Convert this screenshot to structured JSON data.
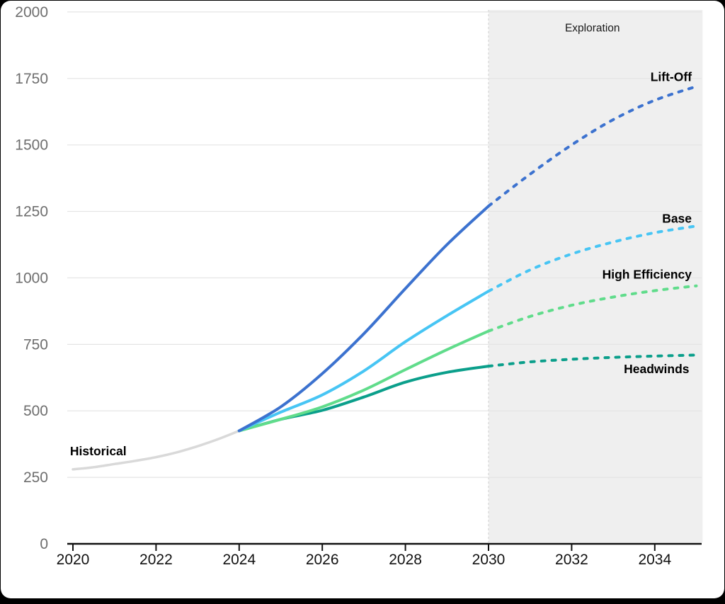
{
  "frame": {
    "background": "#000000",
    "card_background": "#ffffff"
  },
  "chart_data": {
    "type": "line",
    "title": "",
    "xlabel": "",
    "ylabel": "",
    "xlim": [
      2020,
      2035.15
    ],
    "ylim": [
      0,
      2000
    ],
    "x_ticks": [
      2020,
      2022,
      2024,
      2026,
      2028,
      2030,
      2032,
      2034
    ],
    "y_ticks": [
      0,
      250,
      500,
      750,
      1000,
      1250,
      1500,
      1750,
      2000
    ],
    "grid": "horizontal",
    "legend_position": "inline-labels",
    "exploration_region": {
      "label": "Exploration",
      "x_start": 2030,
      "x_end": 2035.15,
      "fill": "#efefef"
    },
    "series": [
      {
        "name": "Historical",
        "color": "#d9d9d9",
        "width": 3.5,
        "solid": [
          [
            2020,
            280
          ],
          [
            2020.5,
            288
          ],
          [
            2021,
            300
          ],
          [
            2021.5,
            312
          ],
          [
            2022,
            326
          ],
          [
            2022.5,
            344
          ],
          [
            2023,
            367
          ],
          [
            2023.5,
            394
          ],
          [
            2024,
            425
          ]
        ],
        "dashed": []
      },
      {
        "name": "Headwinds",
        "color": "#0b9f8b",
        "width": 4,
        "solid": [
          [
            2024,
            425
          ],
          [
            2025,
            468
          ],
          [
            2026,
            502
          ],
          [
            2027,
            552
          ],
          [
            2028,
            608
          ],
          [
            2029,
            645
          ],
          [
            2030,
            668
          ]
        ],
        "dashed": [
          [
            2030,
            668
          ],
          [
            2031,
            684
          ],
          [
            2032,
            694
          ],
          [
            2033,
            701
          ],
          [
            2034,
            706
          ],
          [
            2035,
            710
          ]
        ]
      },
      {
        "name": "High Efficiency",
        "color": "#60dc8b",
        "width": 4,
        "solid": [
          [
            2024,
            425
          ],
          [
            2025,
            468
          ],
          [
            2026,
            515
          ],
          [
            2027,
            578
          ],
          [
            2028,
            655
          ],
          [
            2029,
            730
          ],
          [
            2030,
            800
          ]
        ],
        "dashed": [
          [
            2030,
            800
          ],
          [
            2031,
            855
          ],
          [
            2032,
            897
          ],
          [
            2033,
            928
          ],
          [
            2034,
            952
          ],
          [
            2035,
            970
          ]
        ]
      },
      {
        "name": "Base",
        "color": "#47c5f4",
        "width": 4,
        "solid": [
          [
            2024,
            425
          ],
          [
            2025,
            495
          ],
          [
            2026,
            560
          ],
          [
            2027,
            650
          ],
          [
            2028,
            760
          ],
          [
            2029,
            858
          ],
          [
            2030,
            950
          ]
        ],
        "dashed": [
          [
            2030,
            950
          ],
          [
            2031,
            1030
          ],
          [
            2032,
            1090
          ],
          [
            2033,
            1135
          ],
          [
            2034,
            1170
          ],
          [
            2035,
            1195
          ]
        ]
      },
      {
        "name": "Lift-Off",
        "color": "#3c72cf",
        "width": 4,
        "solid": [
          [
            2024,
            425
          ],
          [
            2025,
            515
          ],
          [
            2026,
            640
          ],
          [
            2027,
            790
          ],
          [
            2028,
            960
          ],
          [
            2029,
            1125
          ],
          [
            2030,
            1270
          ]
        ],
        "dashed": [
          [
            2030,
            1270
          ],
          [
            2031,
            1390
          ],
          [
            2032,
            1500
          ],
          [
            2033,
            1595
          ],
          [
            2034,
            1668
          ],
          [
            2035,
            1720
          ]
        ]
      }
    ],
    "annotations": [
      {
        "id": "historical-label",
        "text": "Historical",
        "year": 2019.93,
        "value": 350,
        "anchor": "start",
        "bold": true,
        "size": 17.5,
        "color": "#000000"
      },
      {
        "id": "liftoff-label",
        "text": "Lift-Off",
        "year": 2034.89,
        "value": 1757,
        "anchor": "end",
        "bold": true,
        "size": 17.5,
        "color": "#000000"
      },
      {
        "id": "base-label",
        "text": "Base",
        "year": 2034.89,
        "value": 1224,
        "anchor": "end",
        "bold": true,
        "size": 17.5,
        "color": "#000000"
      },
      {
        "id": "high-efficiency-label",
        "text": "High Efficiency",
        "year": 2034.89,
        "value": 1014,
        "anchor": "end",
        "bold": true,
        "size": 17.5,
        "color": "#000000"
      },
      {
        "id": "headwinds-label",
        "text": "Headwinds",
        "year": 2034.83,
        "value": 658,
        "anchor": "end",
        "bold": true,
        "size": 17.5,
        "color": "#000000"
      },
      {
        "id": "exploration-label",
        "text": "Exploration",
        "year": 2032.5,
        "value": 1942,
        "anchor": "middle",
        "bold": false,
        "size": 15.5,
        "color": "#1a1a1a"
      }
    ],
    "axis_style": {
      "axis_color": "#111111",
      "x_label_color": "#111111",
      "y_label_color": "#6e6e6e",
      "grid_color": "#e4e4e4",
      "region_edge_color": "#cfcfcf",
      "tick_font_size": 21
    }
  }
}
